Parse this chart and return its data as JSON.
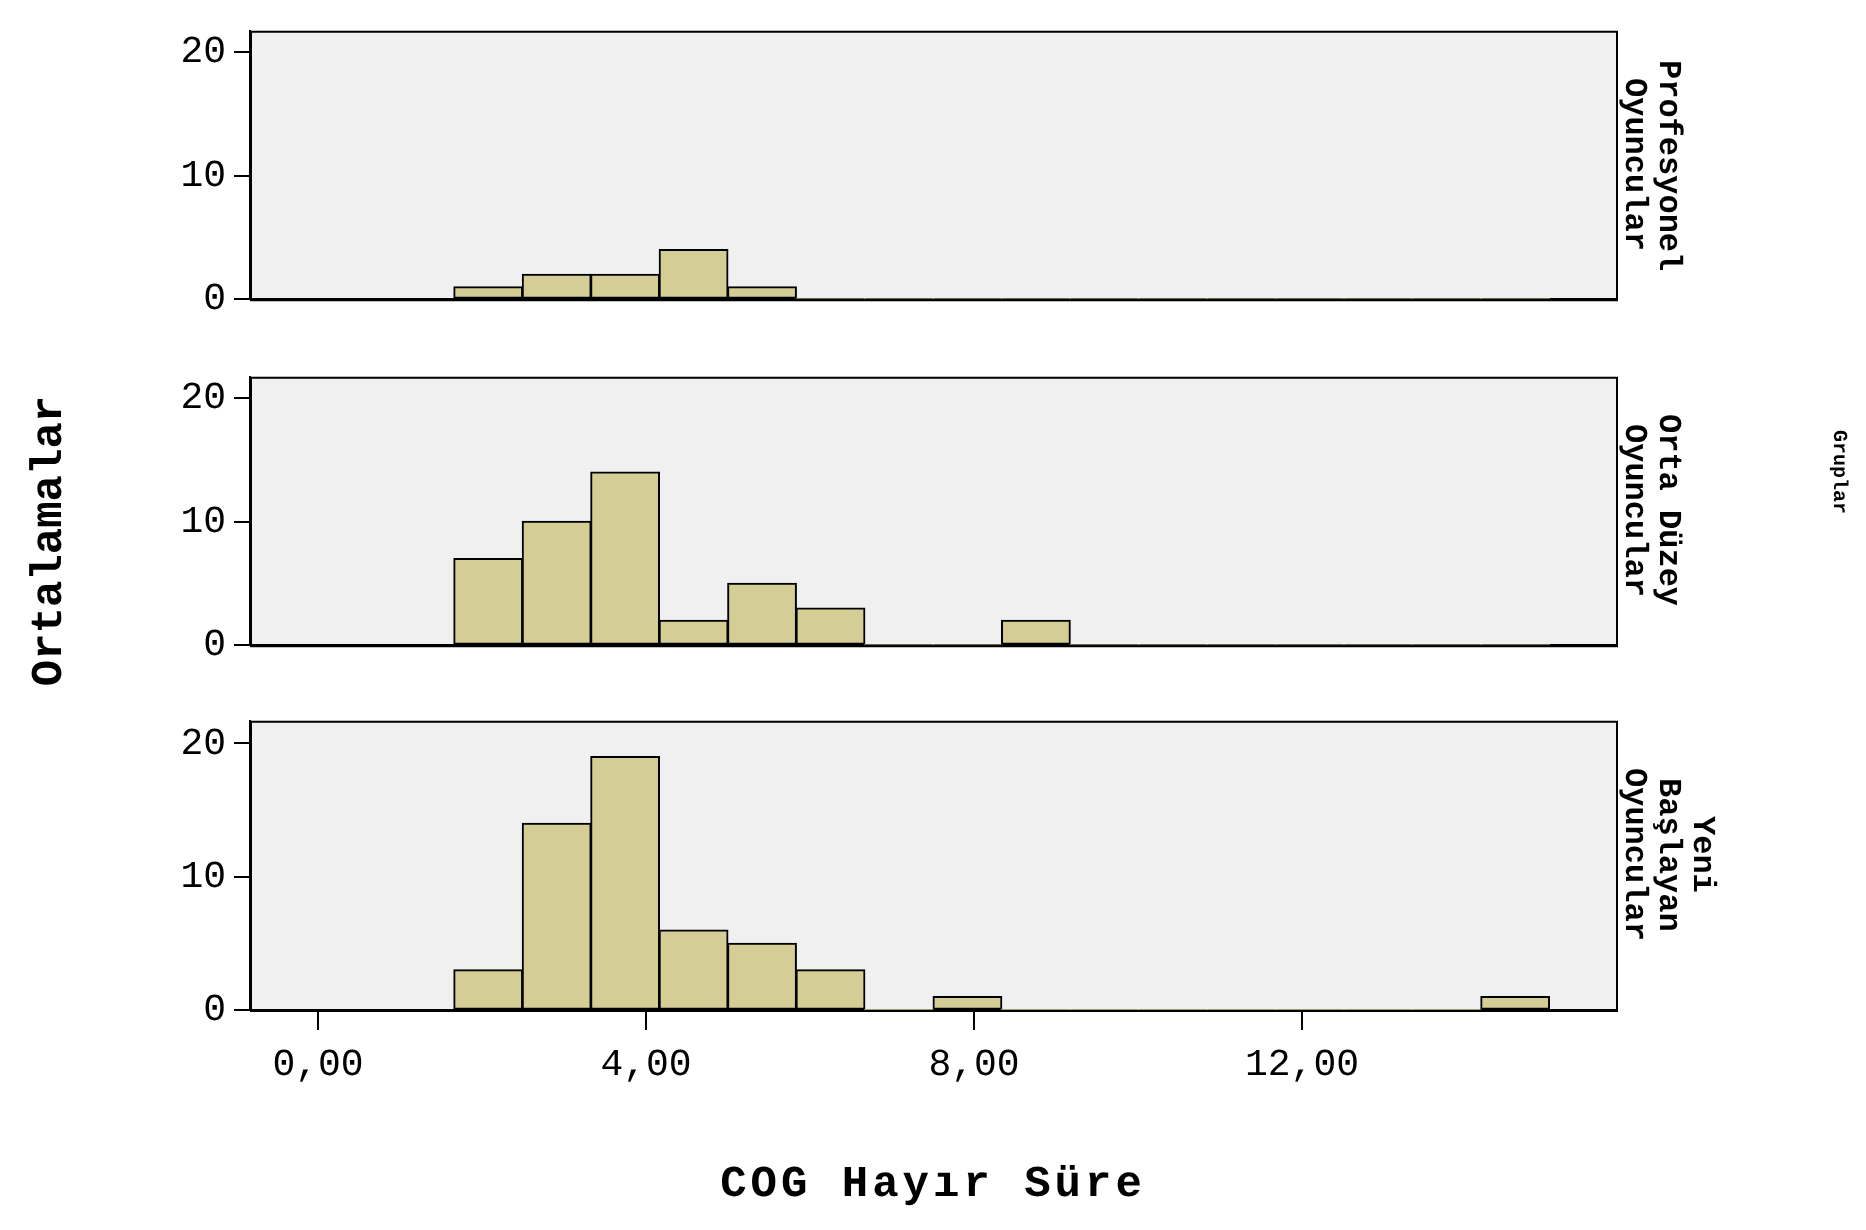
{
  "chart_data": [
    {
      "type": "histogram",
      "title": "Profesyonel Oyuncular",
      "bins": [
        1.66,
        2.49,
        3.33,
        4.16,
        5.0,
        5.83,
        6.67,
        7.5,
        8.34,
        9.17,
        10.01,
        10.84,
        11.68,
        12.51,
        13.35,
        14.18,
        15.02
      ],
      "values": [
        1,
        2,
        2,
        4,
        1,
        0,
        0,
        0,
        0,
        0,
        0,
        0,
        0,
        0,
        0,
        0
      ],
      "color": "#d4ce96",
      "xlim": [
        -0.83,
        15.83
      ],
      "ylim": [
        0,
        21.7
      ],
      "yticks": [
        0,
        10,
        20
      ],
      "tick_labels": "y",
      "grid": false,
      "legend": false
    },
    {
      "type": "histogram",
      "title": "Orta Düzey Oyuncular",
      "ylabel": "Ortalamalar",
      "annotations": [
        "Gruplar"
      ],
      "bins": [
        1.66,
        2.49,
        3.33,
        4.16,
        5.0,
        5.83,
        6.67,
        7.5,
        8.34,
        9.17,
        10.01,
        10.84,
        11.68,
        12.51,
        13.35,
        14.18,
        15.02
      ],
      "values": [
        7,
        10,
        14,
        2,
        5,
        3,
        0,
        0,
        2,
        0,
        0,
        0,
        0,
        0,
        0,
        0
      ],
      "color": "#d4ce96",
      "xlim": [
        -0.83,
        15.83
      ],
      "ylim": [
        0,
        21.7
      ],
      "yticks": [
        0,
        10,
        20
      ],
      "tick_labels": "y",
      "grid": false,
      "legend": false
    },
    {
      "type": "histogram",
      "title": "Yeni Başlayan Oyuncular",
      "xlabel": "COG Hayır Süre",
      "bins": [
        1.66,
        2.49,
        3.33,
        4.16,
        5.0,
        5.83,
        6.67,
        7.5,
        8.34,
        9.17,
        10.01,
        10.84,
        11.68,
        12.51,
        13.35,
        14.18,
        15.02
      ],
      "values": [
        3,
        14,
        19,
        6,
        5,
        3,
        0,
        1,
        0,
        0,
        0,
        0,
        0,
        0,
        0,
        1
      ],
      "color": "#d4ce96",
      "xlim": [
        -0.83,
        15.83
      ],
      "ylim": [
        0,
        21.7
      ],
      "yticks": [
        0,
        10,
        20
      ],
      "xticks": [
        {
          "value": 0,
          "label": "0,00"
        },
        {
          "value": 4,
          "label": "4,00"
        },
        {
          "value": 8,
          "label": "8,00"
        },
        {
          "value": 12,
          "label": "12,00"
        }
      ],
      "grid": false,
      "legend": false
    }
  ]
}
